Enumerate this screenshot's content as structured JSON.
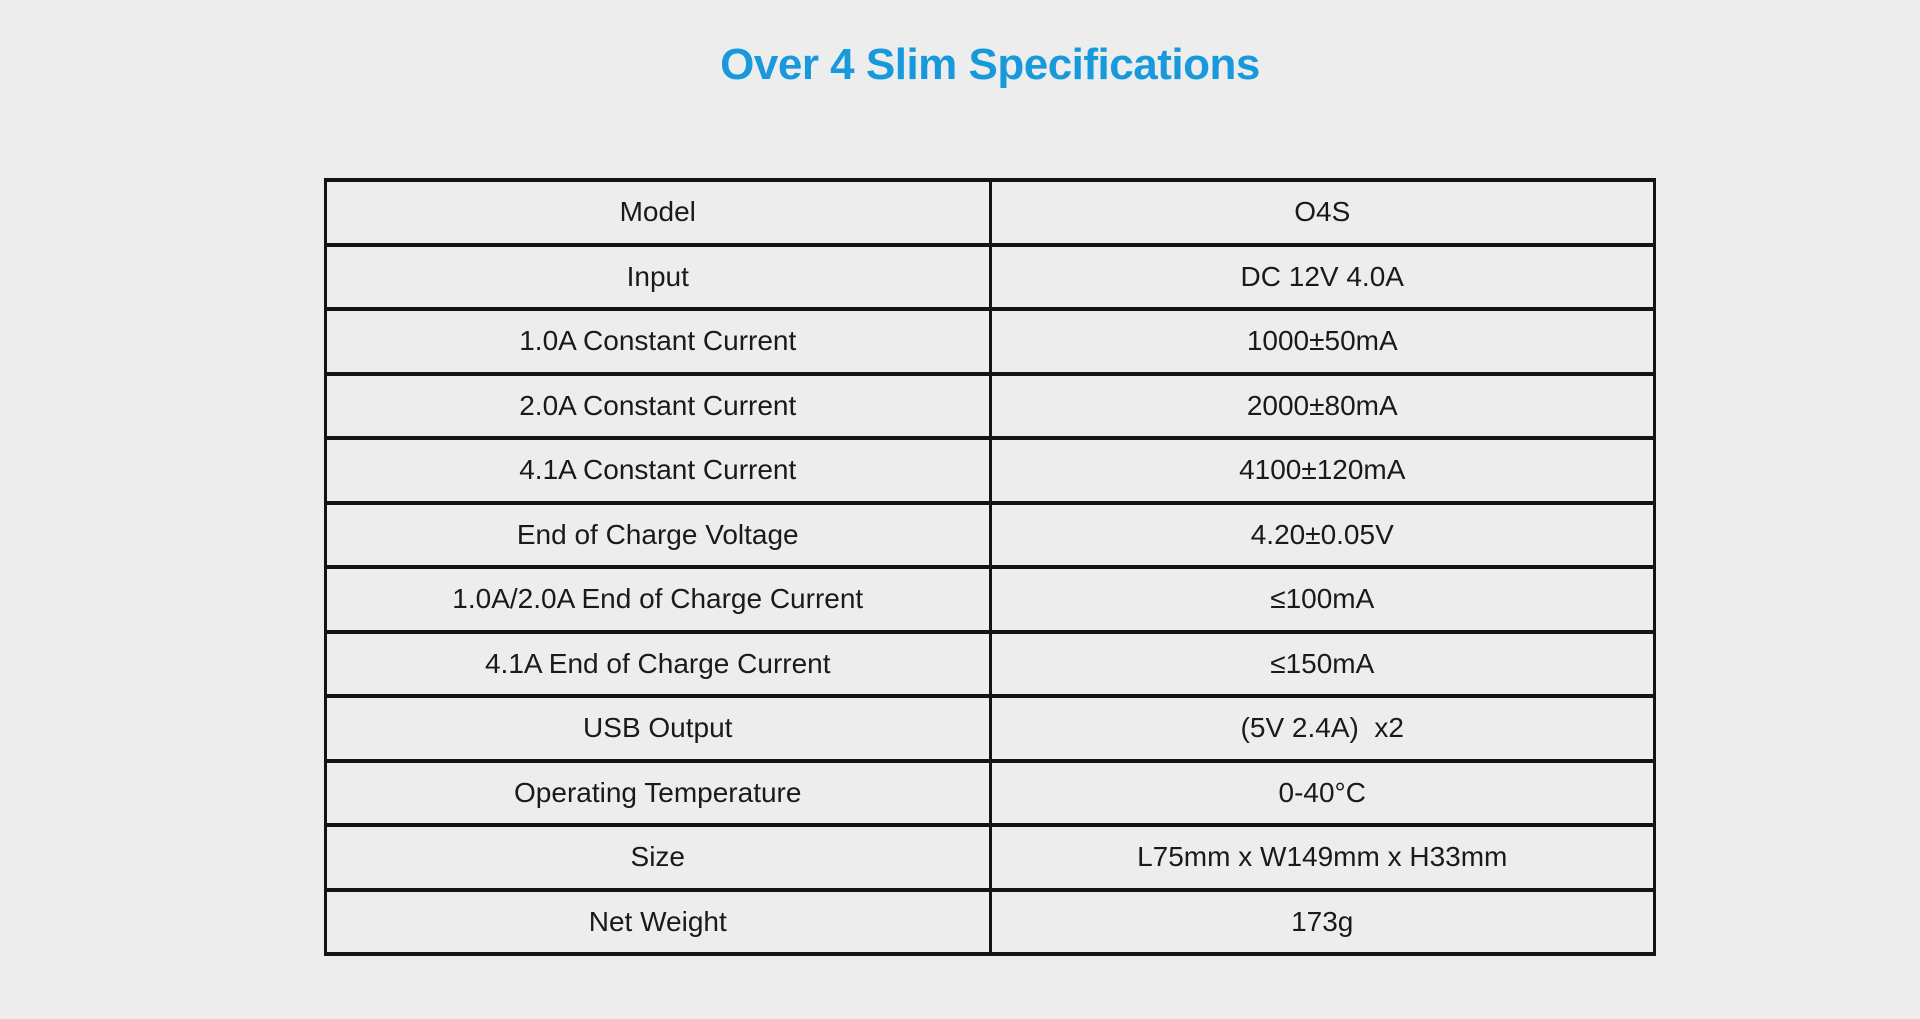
{
  "page": {
    "title": "Over 4 Slim Specifications"
  },
  "colors": {
    "background": "#EDEDED",
    "title_accent": "#1799DB",
    "table_border": "#141414",
    "text": "#1A1A1A"
  },
  "table": {
    "rows": [
      {
        "label": "Model",
        "value": "O4S"
      },
      {
        "label": "Input",
        "value": "DC 12V 4.0A"
      },
      {
        "label": "1.0A Constant Current",
        "value": "1000±50mA"
      },
      {
        "label": "2.0A Constant Current",
        "value": "2000±80mA"
      },
      {
        "label": "4.1A Constant Current",
        "value": "4100±120mA"
      },
      {
        "label": "End of Charge Voltage",
        "value": "4.20±0.05V"
      },
      {
        "label": "1.0A/2.0A End of Charge Current",
        "value": "≤100mA"
      },
      {
        "label": "4.1A End of Charge Current",
        "value": "≤150mA"
      },
      {
        "label": "USB Output",
        "value": "(5V 2.4A)  x2"
      },
      {
        "label": "Operating Temperature",
        "value": "0-40°C"
      },
      {
        "label": "Size",
        "value": "L75mm x W149mm x H33mm"
      },
      {
        "label": "Net Weight",
        "value": "173g"
      }
    ]
  }
}
